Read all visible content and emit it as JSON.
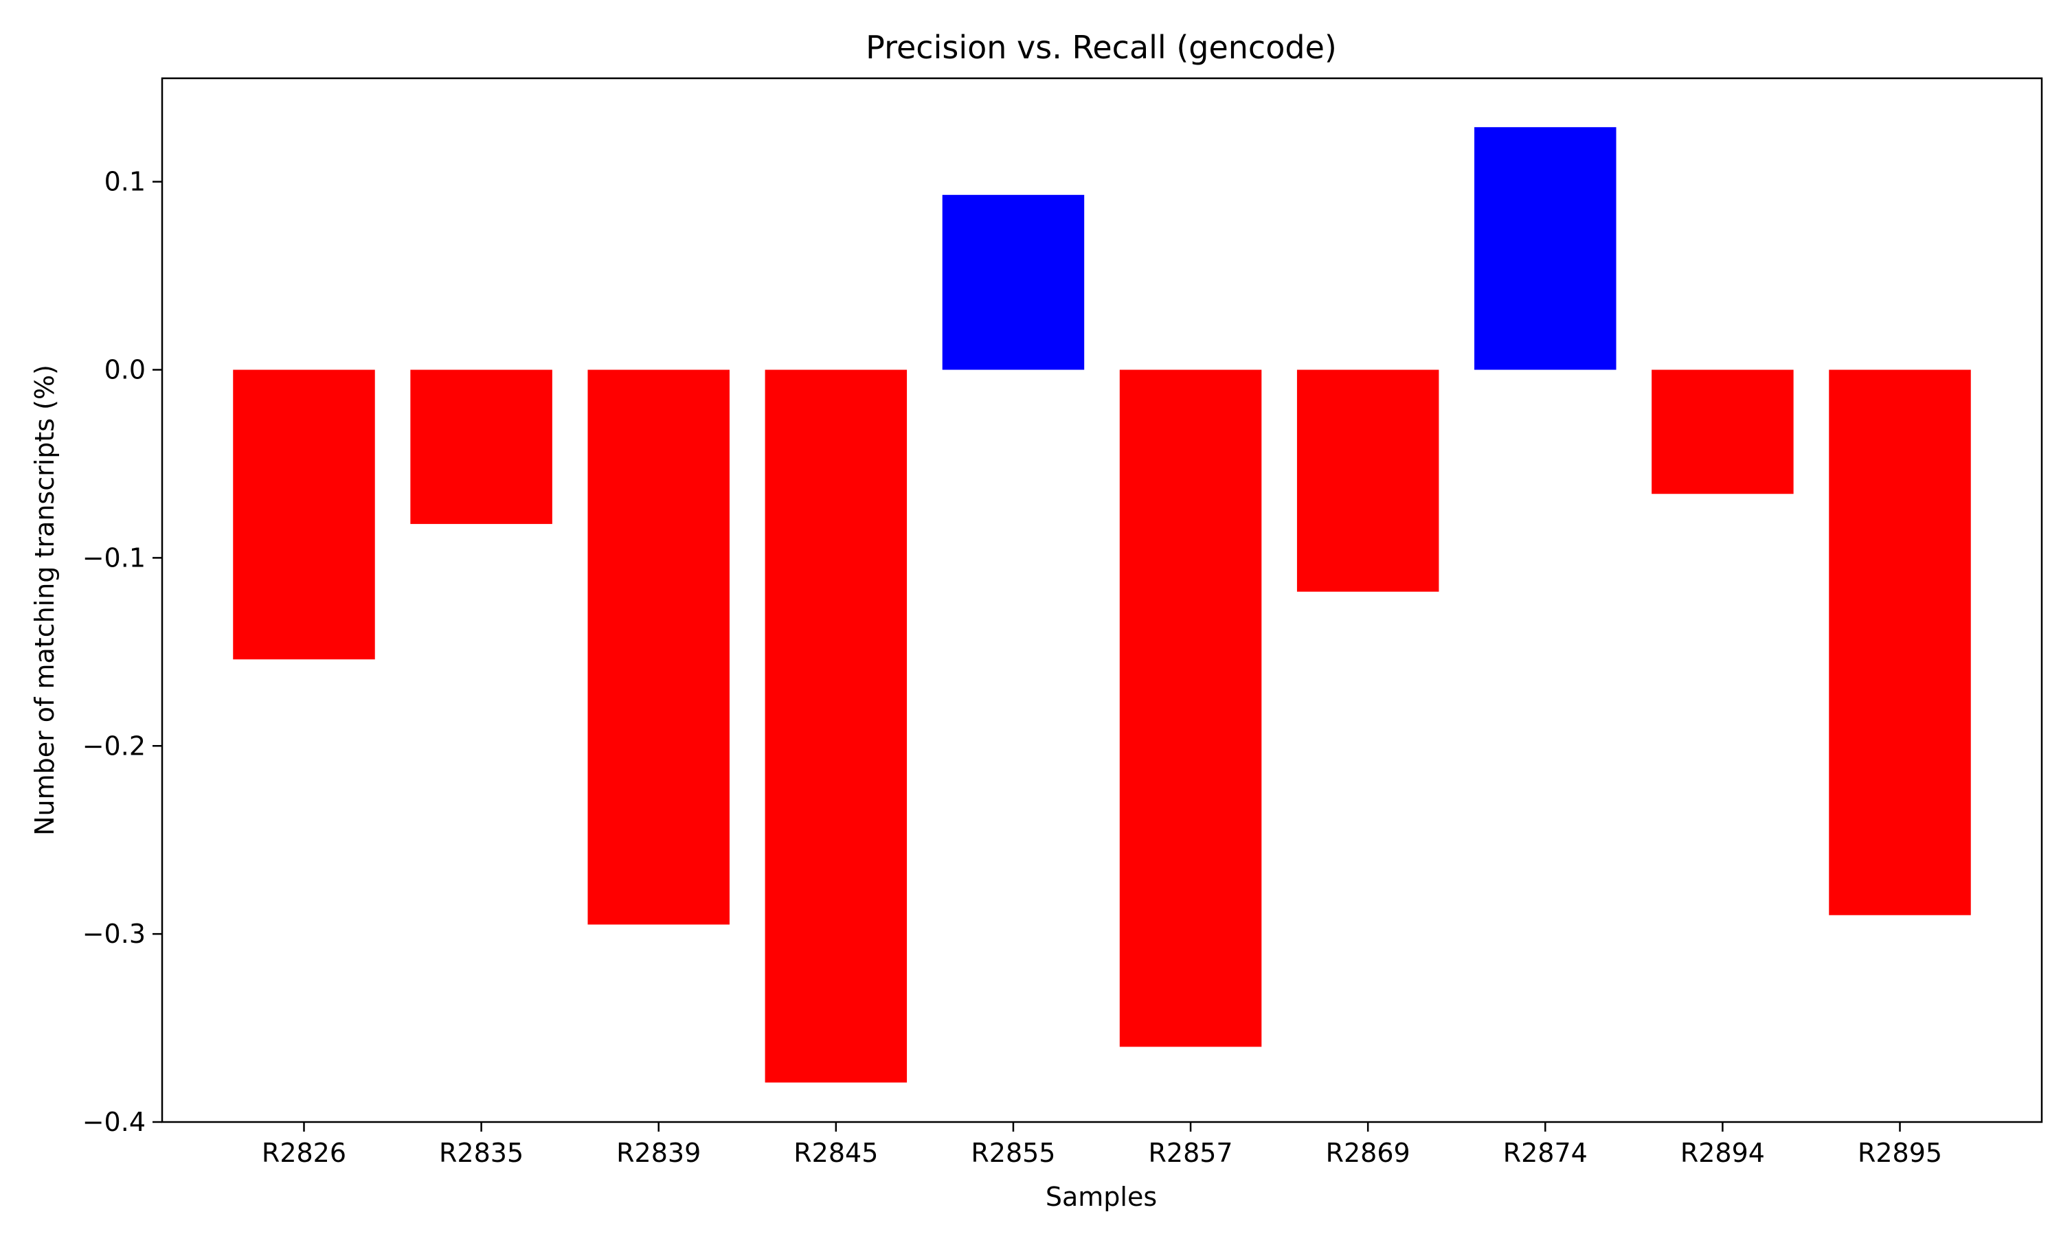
{
  "chart_data": {
    "type": "bar",
    "title": "Precision vs. Recall (gencode)",
    "xlabel": "Samples",
    "ylabel": "Number of matching transcripts (%)",
    "categories": [
      "R2826",
      "R2835",
      "R2839",
      "R2845",
      "R2855",
      "R2857",
      "R2869",
      "R2874",
      "R2894",
      "R2895"
    ],
    "values": [
      -0.154,
      -0.082,
      -0.295,
      -0.379,
      0.093,
      -0.36,
      -0.118,
      0.129,
      -0.066,
      -0.29
    ],
    "ylim": [
      -0.4,
      0.155
    ],
    "yticks": [
      -0.4,
      -0.3,
      -0.2,
      -0.1,
      0.0,
      0.1
    ],
    "ytick_labels": [
      "−0.4",
      "−0.3",
      "−0.2",
      "−0.1",
      "0.0",
      "0.1"
    ],
    "grid": false,
    "legend": null,
    "colors": {
      "positive": "#0000ff",
      "negative": "#ff0000"
    }
  }
}
